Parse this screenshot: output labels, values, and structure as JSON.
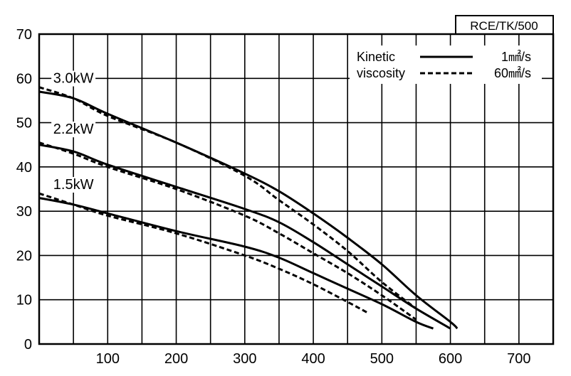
{
  "chart_data": {
    "type": "line",
    "title": "",
    "xlabel": "",
    "ylabel": "",
    "xlim": [
      0,
      750
    ],
    "ylim": [
      0,
      70
    ],
    "x_ticks": [
      100,
      200,
      300,
      400,
      500,
      600,
      700
    ],
    "y_ticks": [
      0,
      10,
      20,
      30,
      40,
      50,
      60,
      70
    ],
    "x_tick_labels": [
      "100",
      "200",
      "300",
      "400",
      "500",
      "600",
      "700"
    ],
    "y_tick_labels": [
      "0",
      "10",
      "20",
      "30",
      "40",
      "50",
      "60",
      "70"
    ],
    "grid": true,
    "model_label": "RCE/TK/500",
    "legend": {
      "title_line1": "Kinetic",
      "title_line2": "viscosity",
      "entry_solid": "1㎟/s",
      "entry_dashed": "60㎟/s",
      "placement": "top-right"
    },
    "curve_labels": [
      {
        "text": "3.0kW",
        "x": 50,
        "y": 59
      },
      {
        "text": "2.2kW",
        "x": 50,
        "y": 47.5
      },
      {
        "text": "1.5kW",
        "x": 50,
        "y": 35
      }
    ],
    "series": [
      {
        "style": "solid",
        "group": "3.0kW",
        "x": [
          0,
          50,
          100,
          200,
          300,
          350,
          400,
          450,
          500,
          550,
          600,
          610
        ],
        "y": [
          57,
          55.5,
          52,
          45.5,
          38.5,
          34.5,
          29.5,
          24,
          18,
          11,
          5,
          3.5
        ]
      },
      {
        "style": "dashed",
        "group": "3.0kW",
        "x": [
          0,
          50,
          100,
          200,
          300,
          350,
          400,
          450,
          500,
          550
        ],
        "y": [
          58,
          55.5,
          51.5,
          45.5,
          38,
          32.5,
          27,
          21,
          14,
          8
        ]
      },
      {
        "style": "solid",
        "group": "2.2kW",
        "x": [
          0,
          50,
          100,
          200,
          300,
          350,
          400,
          450,
          500,
          550,
          600
        ],
        "y": [
          45,
          43.5,
          40.5,
          35.5,
          30.5,
          27.5,
          23,
          18,
          13,
          8,
          3.5
        ]
      },
      {
        "style": "dashed",
        "group": "2.2kW",
        "x": [
          0,
          50,
          100,
          200,
          300,
          350,
          400,
          450,
          500,
          550
        ],
        "y": [
          45.5,
          43,
          40,
          35,
          29,
          25,
          20.5,
          16,
          11,
          5.5
        ]
      },
      {
        "style": "solid",
        "group": "1.5kW",
        "x": [
          0,
          50,
          100,
          200,
          300,
          350,
          400,
          450,
          500,
          550,
          575
        ],
        "y": [
          33,
          31.5,
          29.5,
          25.5,
          22,
          19.5,
          16,
          12.5,
          9,
          5,
          3.5
        ]
      },
      {
        "style": "dashed",
        "group": "1.5kW",
        "x": [
          0,
          50,
          100,
          200,
          300,
          350,
          400,
          450,
          480
        ],
        "y": [
          34,
          31.5,
          29,
          25,
          20,
          17,
          13.5,
          9.5,
          7
        ]
      }
    ]
  }
}
